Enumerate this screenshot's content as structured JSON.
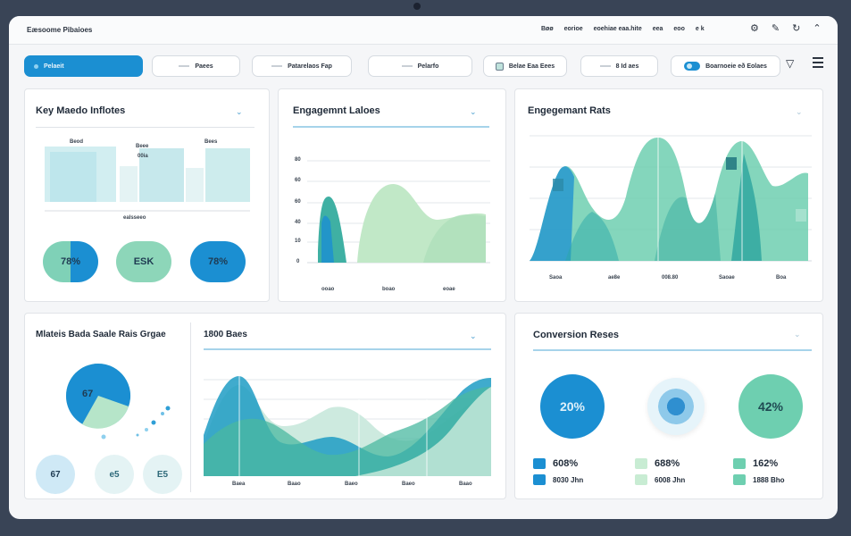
{
  "app": {
    "title": "Eæsoome Pibaioes"
  },
  "top_menu": [
    "Bøø",
    "eorioe",
    "eoehiae eaa.hite",
    "eea",
    "eoo",
    "e k"
  ],
  "filters": {
    "primary": "Pelaeit",
    "items": [
      "Paees",
      "Patarelaos Fap",
      "Pelarfo",
      "Belae Eaa Eees",
      "8 Id aes",
      "Boarnoeie eð Eolaes"
    ]
  },
  "cards": {
    "key_metrics": {
      "title": "Key Maedo Inflotes",
      "bar_labels": [
        "Beod",
        "Beee",
        "Bees"
      ],
      "bar_value": "00ia",
      "axis_caption": "ealsseeo",
      "stats": [
        "78%",
        "ESK",
        "78%"
      ]
    },
    "engagement_lines": {
      "title": "Engagemnt Laloes",
      "y_ticks": [
        "80",
        "60",
        "60",
        "40",
        "10",
        "0"
      ],
      "x_ticks": [
        "ooao",
        "boao",
        "eoae"
      ]
    },
    "engagement_rate": {
      "title": "Engegemant Rats",
      "x_ticks": [
        "Saoa",
        "ae8e",
        "008.80",
        "Saoae",
        "Boa"
      ]
    },
    "metrics_rates": {
      "title": "Mlateis Bada Saale Rais Grgae",
      "pie_label": "67",
      "bubbles": [
        "67",
        "e5",
        "E5"
      ]
    },
    "wave": {
      "title": "1800 Baes",
      "x_ticks": [
        "Baea",
        "Baao",
        "Baeo",
        "Baeo",
        "Baao"
      ]
    },
    "conversion": {
      "title": "Conversion Reses",
      "circles": [
        "20%",
        "",
        "42%"
      ],
      "legend": [
        {
          "value": "608%",
          "sub": "8030 Jhn"
        },
        {
          "value": "688%",
          "sub": "6008 Jhn"
        },
        {
          "value": "162%",
          "sub": "1888 Bho"
        }
      ]
    }
  },
  "colors": {
    "accent": "#1b8fd2",
    "teal": "#3fb0a3",
    "mint": "#8fd8b9",
    "pale": "#cfe9ee"
  }
}
